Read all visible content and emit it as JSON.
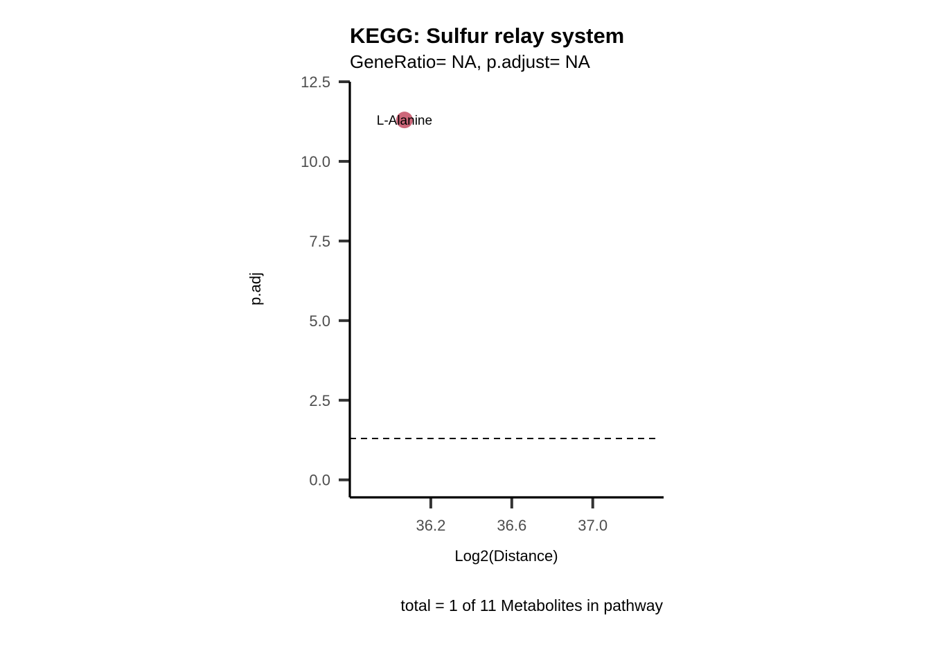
{
  "chart_data": {
    "type": "scatter",
    "title": "KEGG: Sulfur relay system",
    "subtitle": "GeneRatio= NA, p.adjust= NA",
    "xlabel": "Log2(Distance)",
    "ylabel": "p.adj",
    "caption": "total = 1 of 11 Metabolites in pathway",
    "xlim": [
      35.8,
      37.35
    ],
    "ylim": [
      -0.55,
      12.5
    ],
    "x_ticks": [
      36.2,
      36.6,
      37.0
    ],
    "x_tick_labels": [
      "36.2",
      "36.6",
      "37.0"
    ],
    "y_ticks": [
      0.0,
      2.5,
      5.0,
      7.5,
      10.0,
      12.5
    ],
    "y_tick_labels": [
      "0.0",
      "2.5",
      "5.0",
      "7.5",
      "10.0",
      "12.5"
    ],
    "threshold_line": {
      "y": 1.3,
      "style": "dashed"
    },
    "points": [
      {
        "label": "L-Alanine",
        "x": 36.07,
        "y": 11.3
      }
    ],
    "point_color": "#c8566b",
    "grid": false,
    "legend": "none"
  }
}
